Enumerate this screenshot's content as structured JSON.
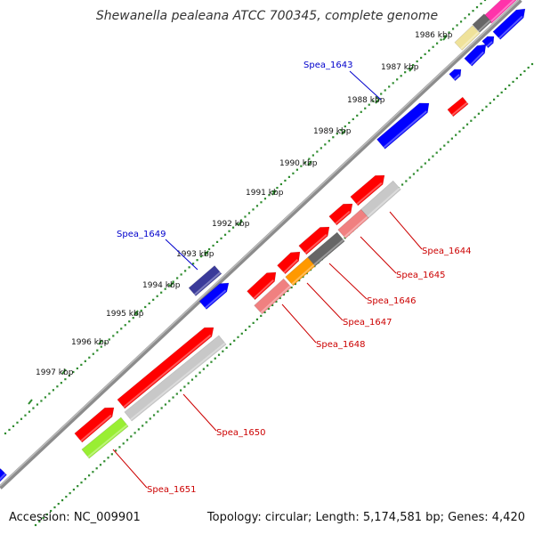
{
  "title": "Shewanella pealeana ATCC 700345, complete genome",
  "accession": "Accession: NC_009901",
  "summary": "Topology: circular; Length: 5,174,581 bp; Genes: 4,420",
  "colors": {
    "backbone": "#8c8c8c",
    "tick_track": "#2e8b2e",
    "label_red": "#cc0000",
    "label_blue": "#0000cc",
    "red": "#ff0000",
    "pink": "#f08080",
    "dark_gray": "#666666",
    "light_gray": "#c8c8c8",
    "orange": "#ff9900",
    "khaki": "#efe29a",
    "magenta": "#ff33aa",
    "blue": "#0000ff",
    "navy": "#3a3a9a",
    "lime": "#99ee33"
  },
  "kbp_labels": [
    "1986 kbp",
    "1987 kbp",
    "1988 kbp",
    "1989 kbp",
    "1990 kbp",
    "1991 kbp",
    "1992 kbp",
    "1993 kbp",
    "1994 kbp",
    "1995 kbp",
    "1996 kbp",
    "1997 kbp"
  ],
  "gene_labels": {
    "spea_1643": "Spea_1643",
    "spea_1649": "Spea_1649",
    "spea_1644": "Spea_1644",
    "spea_1645": "Spea_1645",
    "spea_1646": "Spea_1646",
    "spea_1647": "Spea_1647",
    "spea_1648": "Spea_1648",
    "spea_1650": "Spea_1650",
    "spea_1651": "Spea_1651"
  }
}
